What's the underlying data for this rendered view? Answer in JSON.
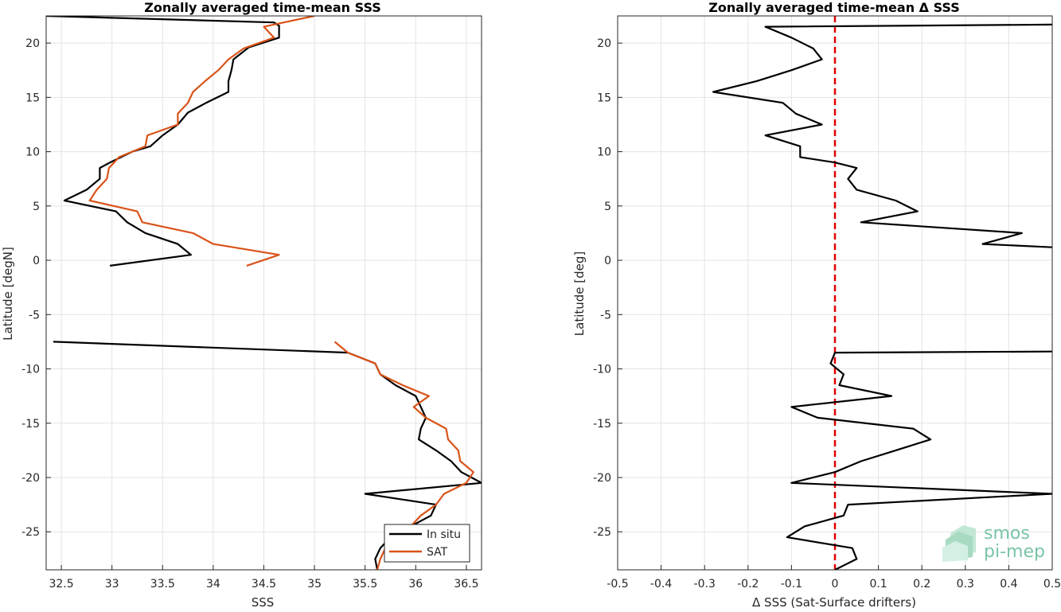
{
  "chart_data": [
    {
      "type": "line",
      "title": "Zonally averaged time-mean SSS",
      "xlabel": "SSS",
      "ylabel": "Latitude [degN]",
      "xlim": [
        32.35,
        36.65
      ],
      "ylim": [
        -28.5,
        22.5
      ],
      "xticks": [
        32.5,
        33,
        33.5,
        34,
        34.5,
        35,
        35.5,
        36,
        36.5
      ],
      "xtick_labels": [
        "32.5",
        "33",
        "33.5",
        "34",
        "34.5",
        "35",
        "35.5",
        "36",
        "36.5"
      ],
      "yticks": [
        -25,
        -20,
        -15,
        -10,
        -5,
        0,
        5,
        10,
        15,
        20
      ],
      "ytick_labels": [
        "-25",
        "-20",
        "-15",
        "-10",
        "-5",
        "0",
        "5",
        "10",
        "15",
        "20"
      ],
      "grid": true,
      "legend": {
        "location": "bottom-right",
        "entries": [
          "In situ",
          "SAT"
        ]
      },
      "series": [
        {
          "name": "In situ",
          "color": "#000000",
          "segments": [
            [
              [
                32.35,
                22.5
              ],
              [
                34.6,
                21.9
              ],
              [
                34.65,
                21.6
              ],
              [
                34.65,
                20.5
              ],
              [
                34.35,
                19.6
              ],
              [
                34.2,
                18.5
              ],
              [
                34.18,
                17.5
              ],
              [
                34.15,
                16.5
              ],
              [
                34.15,
                15.5
              ],
              [
                33.93,
                14.5
              ],
              [
                33.75,
                13.6
              ],
              [
                33.65,
                12.5
              ],
              [
                33.5,
                11.5
              ],
              [
                33.38,
                10.5
              ],
              [
                33.2,
                10.0
              ],
              [
                32.98,
                9.0
              ],
              [
                32.88,
                8.5
              ],
              [
                32.88,
                7.5
              ],
              [
                32.75,
                6.5
              ],
              [
                32.53,
                5.5
              ],
              [
                33.04,
                4.5
              ],
              [
                33.15,
                3.5
              ],
              [
                33.33,
                2.5
              ],
              [
                33.65,
                1.5
              ],
              [
                33.78,
                0.5
              ],
              [
                32.98,
                -0.5
              ]
            ],
            [
              [
                32.42,
                -7.5
              ],
              [
                35.33,
                -8.5
              ],
              [
                35.6,
                -9.5
              ],
              [
                35.65,
                -10.5
              ],
              [
                35.8,
                -11.5
              ],
              [
                36.0,
                -12.5
              ],
              [
                36.05,
                -13.5
              ],
              [
                36.1,
                -14.5
              ],
              [
                36.05,
                -15.5
              ],
              [
                36.03,
                -16.5
              ],
              [
                36.2,
                -17.5
              ],
              [
                36.35,
                -18.5
              ],
              [
                36.45,
                -19.5
              ],
              [
                36.65,
                -20.5
              ],
              [
                35.5,
                -21.5
              ],
              [
                36.2,
                -22.5
              ],
              [
                36.15,
                -23.5
              ],
              [
                35.95,
                -24.5
              ],
              [
                35.75,
                -25.5
              ],
              [
                35.65,
                -26.5
              ],
              [
                35.6,
                -27.5
              ],
              [
                35.62,
                -28.5
              ]
            ]
          ]
        },
        {
          "name": "SAT",
          "color": "#d95319",
          "segments": [
            [
              [
                35.0,
                22.5
              ],
              [
                34.5,
                21.5
              ],
              [
                34.6,
                20.5
              ],
              [
                34.3,
                19.5
              ],
              [
                34.15,
                18.5
              ],
              [
                34.05,
                17.5
              ],
              [
                33.92,
                16.5
              ],
              [
                33.8,
                15.5
              ],
              [
                33.75,
                14.5
              ],
              [
                33.65,
                13.5
              ],
              [
                33.65,
                12.5
              ],
              [
                33.35,
                11.5
              ],
              [
                33.33,
                10.5
              ],
              [
                33.07,
                9.5
              ],
              [
                32.97,
                8.5
              ],
              [
                32.95,
                7.5
              ],
              [
                32.85,
                6.5
              ],
              [
                32.78,
                5.5
              ],
              [
                33.25,
                4.5
              ],
              [
                33.3,
                3.5
              ],
              [
                33.8,
                2.5
              ],
              [
                34.0,
                1.5
              ],
              [
                34.65,
                0.5
              ],
              [
                34.33,
                -0.5
              ]
            ],
            [
              [
                35.2,
                -7.5
              ],
              [
                35.33,
                -8.5
              ],
              [
                35.6,
                -9.5
              ],
              [
                35.65,
                -10.5
              ],
              [
                35.87,
                -11.5
              ],
              [
                36.13,
                -12.5
              ],
              [
                35.98,
                -13.5
              ],
              [
                36.1,
                -14.5
              ],
              [
                36.3,
                -15.5
              ],
              [
                36.32,
                -16.5
              ],
              [
                36.42,
                -17.5
              ],
              [
                36.44,
                -18.5
              ],
              [
                36.57,
                -19.5
              ],
              [
                36.5,
                -20.5
              ],
              [
                36.28,
                -21.5
              ],
              [
                36.2,
                -22.5
              ],
              [
                36.05,
                -23.5
              ],
              [
                35.95,
                -24.5
              ],
              [
                35.78,
                -25.5
              ],
              [
                35.7,
                -26.5
              ],
              [
                35.65,
                -27.5
              ],
              [
                35.62,
                -28.5
              ]
            ]
          ]
        }
      ]
    },
    {
      "type": "line",
      "title": "Zonally averaged time-mean Δ SSS",
      "xlabel": "Δ SSS (Sat-Surface drifters)",
      "ylabel": "Latitude [deg]",
      "xlim": [
        -0.5,
        0.5
      ],
      "ylim": [
        -28.5,
        22.5
      ],
      "xticks": [
        -0.5,
        -0.4,
        -0.3,
        -0.2,
        -0.1,
        0,
        0.1,
        0.2,
        0.3,
        0.4,
        0.5
      ],
      "xtick_labels": [
        "-0.5",
        "-0.4",
        "-0.3",
        "-0.2",
        "-0.1",
        "0",
        "0.1",
        "0.2",
        "0.3",
        "0.4",
        "0.5"
      ],
      "yticks": [
        -25,
        -20,
        -15,
        -10,
        -5,
        0,
        5,
        10,
        15,
        20
      ],
      "ytick_labels": [
        "-25",
        "-20",
        "-15",
        "-10",
        "-5",
        "0",
        "5",
        "10",
        "15",
        "20"
      ],
      "grid": true,
      "reference_line": {
        "x": 0,
        "color": "#e00000",
        "style": "dashed"
      },
      "series": [
        {
          "name": "",
          "color": "#000000",
          "segments": [
            [
              [
                0.5,
                21.7
              ],
              [
                -0.16,
                21.5
              ],
              [
                -0.1,
                20.5
              ],
              [
                -0.05,
                19.5
              ],
              [
                -0.03,
                18.5
              ],
              [
                -0.1,
                17.5
              ],
              [
                -0.18,
                16.5
              ],
              [
                -0.28,
                15.5
              ],
              [
                -0.12,
                14.5
              ],
              [
                -0.09,
                13.5
              ],
              [
                -0.03,
                12.5
              ],
              [
                -0.16,
                11.5
              ],
              [
                -0.08,
                10.5
              ],
              [
                -0.08,
                9.5
              ],
              [
                0.0,
                9.0
              ],
              [
                0.05,
                8.5
              ],
              [
                0.03,
                7.5
              ],
              [
                0.05,
                6.5
              ],
              [
                0.14,
                5.5
              ],
              [
                0.19,
                4.5
              ],
              [
                0.06,
                3.5
              ],
              [
                0.43,
                2.5
              ],
              [
                0.34,
                1.5
              ],
              [
                0.5,
                1.2
              ]
            ],
            [
              [
                0.5,
                -8.4
              ],
              [
                0.0,
                -8.5
              ],
              [
                -0.01,
                -9.5
              ],
              [
                0.02,
                -10.5
              ],
              [
                0.01,
                -11.5
              ],
              [
                0.13,
                -12.5
              ],
              [
                -0.1,
                -13.5
              ],
              [
                -0.04,
                -14.5
              ],
              [
                0.18,
                -15.5
              ],
              [
                0.22,
                -16.5
              ],
              [
                0.14,
                -17.5
              ],
              [
                0.06,
                -18.5
              ],
              [
                0.0,
                -19.5
              ],
              [
                -0.1,
                -20.5
              ],
              [
                0.5,
                -21.5
              ],
              [
                0.03,
                -22.5
              ],
              [
                0.02,
                -23.5
              ],
              [
                -0.07,
                -24.5
              ],
              [
                -0.11,
                -25.5
              ],
              [
                0.04,
                -26.5
              ],
              [
                0.05,
                -27.5
              ],
              [
                0.0,
                -28.5
              ]
            ]
          ]
        }
      ]
    }
  ],
  "logo": {
    "text_line1": "smos",
    "text_line2": "pi-mep"
  }
}
